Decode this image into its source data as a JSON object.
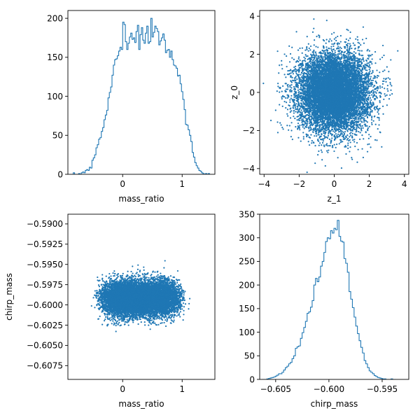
{
  "chart_data": [
    {
      "type": "histogram",
      "xlabel": "mass_ratio",
      "ylabel": "",
      "xlim": [
        -0.92,
        1.55
      ],
      "ylim": [
        0,
        210
      ],
      "xticks": [
        0,
        1
      ],
      "yticks": [
        0,
        50,
        100,
        150,
        200
      ],
      "grid": false,
      "color": "#1f77b4",
      "bin_edges_range": [
        -0.83,
        1.46
      ],
      "counts": [
        2,
        0,
        0,
        0,
        1,
        0,
        2,
        3,
        2,
        5,
        6,
        5,
        9,
        8,
        18,
        21,
        25,
        34,
        38,
        45,
        47,
        55,
        60,
        70,
        76,
        82,
        98,
        105,
        112,
        127,
        140,
        147,
        148,
        152,
        158,
        163,
        160,
        195,
        192,
        170,
        160,
        168,
        176,
        181,
        173,
        175,
        169,
        183,
        191,
        160,
        179,
        188,
        172,
        168,
        181,
        190,
        168,
        170,
        200,
        176,
        182,
        190,
        187,
        183,
        166,
        171,
        175,
        180,
        172,
        156,
        159,
        160,
        150,
        158,
        147,
        140,
        139,
        136,
        126,
        127,
        116,
        106,
        96,
        83,
        64,
        63,
        57,
        50,
        42,
        28,
        22,
        15,
        11,
        8,
        5,
        4,
        2,
        1,
        0,
        1,
        0,
        1
      ]
    },
    {
      "type": "scatter",
      "xlabel": "z_1",
      "ylabel": "z_0",
      "xlim": [
        -4.25,
        4.25
      ],
      "ylim": [
        -4.3,
        4.3
      ],
      "xticks": [
        -4,
        -2,
        0,
        2,
        4
      ],
      "yticks": [
        -4,
        -2,
        0,
        2,
        4
      ],
      "grid": false,
      "color": "#1f77b4",
      "n_points": 10000,
      "distribution": {
        "x_mean": 0,
        "x_std": 1,
        "y_mean": 0,
        "y_std": 1
      }
    },
    {
      "type": "scatter",
      "xlabel": "mass_ratio",
      "ylabel": "chirp_mass",
      "xlim": [
        -0.92,
        1.55
      ],
      "ylim": [
        -0.6092,
        -0.5888
      ],
      "xticks": [
        0,
        1
      ],
      "yticks": [
        -0.59,
        -0.5925,
        -0.595,
        -0.5975,
        -0.6,
        -0.6025,
        -0.605,
        -0.6075
      ],
      "ytick_labels": [
        "−0.5900",
        "−0.5925",
        "−0.5950",
        "−0.5975",
        "−0.6000",
        "−0.6025",
        "−0.6050",
        "−0.6075"
      ],
      "grid": false,
      "color": "#1f77b4",
      "n_points": 10000,
      "distribution": {
        "x_center": 0.3,
        "x_halfwidth": 0.55,
        "y_mean": -0.5992,
        "y_std": 0.0011
      }
    },
    {
      "type": "histogram",
      "xlabel": "chirp_mass",
      "ylabel": "",
      "xlim": [
        -0.6065,
        -0.5925
      ],
      "ylim": [
        0,
        350
      ],
      "xticks": [
        -0.605,
        -0.6,
        -0.595
      ],
      "xtick_labels": [
        "−0.605",
        "−0.600",
        "−0.595"
      ],
      "yticks": [
        0,
        50,
        100,
        150,
        200,
        250,
        300,
        350
      ],
      "grid": false,
      "color": "#1f77b4",
      "bin_edges_range": [
        -0.6063,
        -0.5937
      ],
      "counts": [
        0,
        0,
        0,
        1,
        2,
        3,
        4,
        5,
        7,
        9,
        12,
        12,
        15,
        20,
        25,
        28,
        33,
        36,
        44,
        50,
        66,
        69,
        71,
        87,
        99,
        110,
        123,
        140,
        143,
        153,
        167,
        200,
        214,
        207,
        217,
        240,
        250,
        269,
        292,
        300,
        298,
        315,
        310,
        320,
        317,
        337,
        303,
        293,
        291,
        256,
        246,
        227,
        186,
        170,
        152,
        132,
        113,
        97,
        82,
        68,
        56,
        40,
        33,
        25,
        18,
        15,
        12,
        8,
        6,
        4,
        3,
        2,
        1,
        1,
        0,
        0,
        0,
        1,
        0,
        0
      ]
    }
  ]
}
